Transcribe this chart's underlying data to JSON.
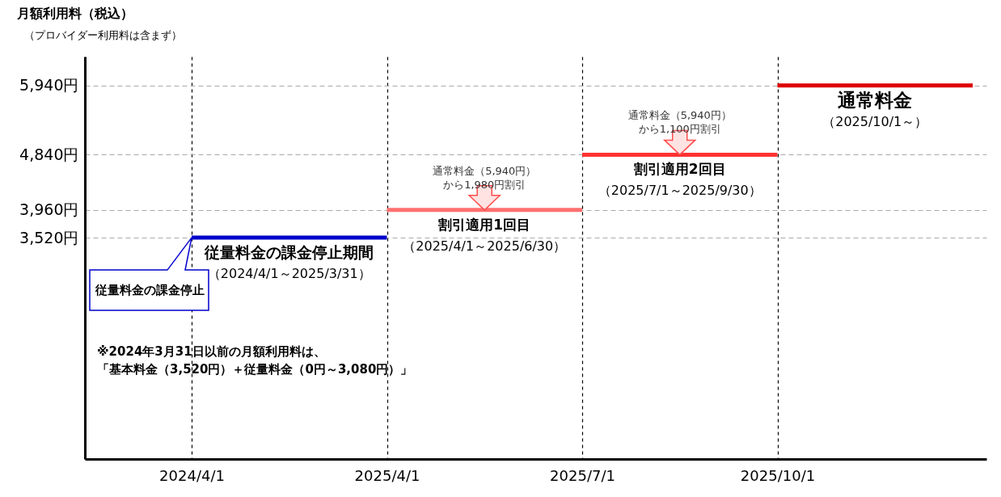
{
  "chart_data": {
    "type": "line",
    "ylabel": "月額利用料（税込）",
    "categories": [
      "2024/4/1",
      "2025/4/1",
      "2025/7/1",
      "2025/10/1",
      null
    ],
    "series": [
      {
        "name": "従量料金の課金停止期間",
        "color": "#0000cc",
        "values": [
          3520,
          3520,
          null,
          null,
          null
        ]
      },
      {
        "name": "割引適用1回目",
        "color": "#ff7070",
        "values": [
          null,
          3960,
          3960,
          null,
          null
        ]
      },
      {
        "name": "割引適用2回目",
        "color": "#ff3333",
        "values": [
          null,
          null,
          4840,
          4840,
          null
        ]
      },
      {
        "name": "通常料金",
        "color": "#dd0000",
        "values": [
          null,
          null,
          null,
          5940,
          5940
        ]
      }
    ],
    "ylim": [
      0,
      6400
    ],
    "yticks": [
      {
        "value": 3520,
        "label": "3,520円"
      },
      {
        "value": 3960,
        "label": "3,960円"
      },
      {
        "value": 4840,
        "label": "4,840円"
      },
      {
        "value": 5940,
        "label": "5,940円"
      }
    ],
    "grid": true,
    "annotations": [
      "（プロバイダー利用料は含まず）",
      "（2024/4/1～2025/3/31）",
      "（2025/4/1～2025/6/30）",
      "（2025/7/1～2025/9/30）",
      "（2025/10/1～）",
      "従量料金の課金停止",
      {
        "text": "通常料金（5,940円）から1,980円割引",
        "y": 3960
      },
      {
        "text": "通常料金（5,940円）から1,100円割引",
        "y": 4840
      },
      "※2024年3月31日以前の月額利用料は、「基本料金（3,520円）＋従量料金（0円～3,080円）」"
    ]
  }
}
